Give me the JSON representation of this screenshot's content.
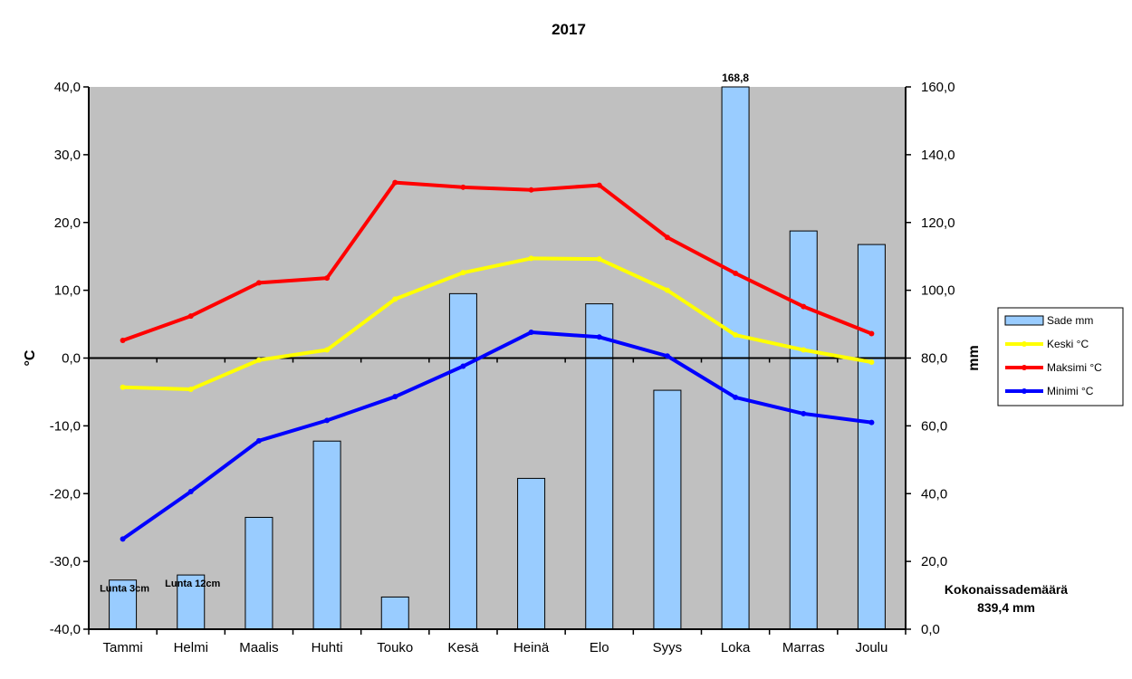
{
  "chart_data": {
    "type": "bar",
    "title": "2017",
    "categories": [
      "Tammi",
      "Helmi",
      "Maalis",
      "Huhti",
      "Touko",
      "Kesä",
      "Heinä",
      "Elo",
      "Syys",
      "Loka",
      "Marras",
      "Joulu"
    ],
    "y_left": {
      "label": "°C",
      "ylim": [
        -40,
        40
      ],
      "ticks": [
        "40,0",
        "30,0",
        "20,0",
        "10,0",
        "0,0",
        "-10,0",
        "-20,0",
        "-30,0",
        "-40,0"
      ]
    },
    "y_right": {
      "label": "mm",
      "ylim": [
        0,
        160
      ],
      "ticks": [
        "160,0",
        "140,0",
        "120,0",
        "100,0",
        "80,0",
        "60,0",
        "40,0",
        "20,0",
        "0,0"
      ]
    },
    "bars": {
      "name": "Sade mm",
      "color": "#99ccff",
      "axis": "right",
      "values": [
        14.5,
        16.0,
        33.0,
        55.5,
        9.5,
        99.0,
        44.5,
        96.0,
        70.5,
        168.8,
        117.5,
        113.5
      ]
    },
    "series": [
      {
        "name": "Keski °C",
        "color": "#ffff00",
        "axis": "left",
        "values": [
          -4.3,
          -4.6,
          -0.3,
          1.2,
          8.7,
          12.6,
          14.7,
          14.6,
          10.0,
          3.4,
          1.2,
          -0.6
        ]
      },
      {
        "name": "Maksimi °C",
        "color": "#ff0000",
        "axis": "left",
        "values": [
          2.6,
          6.2,
          11.1,
          11.8,
          25.9,
          25.2,
          24.8,
          25.5,
          17.8,
          12.5,
          7.6,
          3.6
        ]
      },
      {
        "name": "Minimi °C",
        "color": "#0000ff",
        "axis": "left",
        "values": [
          -26.7,
          -19.7,
          -12.2,
          -9.2,
          -5.7,
          -1.2,
          3.8,
          3.1,
          0.3,
          -5.8,
          -8.2,
          -9.5
        ]
      }
    ],
    "bar_annotations": [
      {
        "index": 0,
        "text": "Lunta 3cm"
      },
      {
        "index": 1,
        "text": "Lunta 12cm"
      },
      {
        "index": 9,
        "text": "168,8"
      }
    ],
    "total": {
      "line1": "Kokonaissademäärä",
      "line2": "839,4 mm"
    },
    "legend_position": "right",
    "plot_background": "#c0c0c0"
  }
}
